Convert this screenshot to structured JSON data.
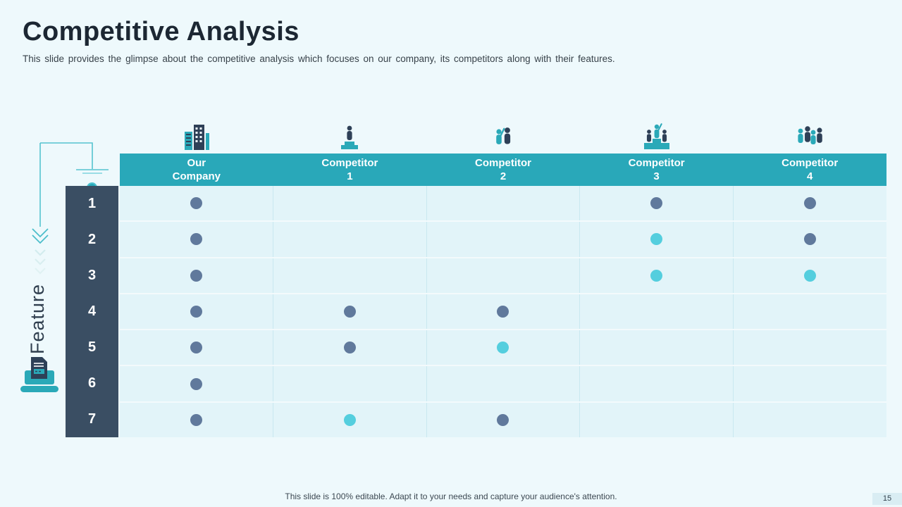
{
  "slide": {
    "title": "Competitive Analysis",
    "subtitle": "This slide provides the glimpse about the competitive analysis which focuses on our company, its competitors along with their features.",
    "footer": "This slide is 100% editable. Adapt it to your needs and capture your audience's attention.",
    "page_number": "15"
  },
  "colors": {
    "accent_teal": "#29a8b9",
    "navy": "#3a4e63",
    "dot_dark": "#60799c",
    "dot_cyan": "#54cede",
    "background": "#eef9fc",
    "cell_background": "#e2f4f9"
  },
  "table": {
    "row_axis_label": "Feature",
    "columns": [
      {
        "line1": "Our",
        "line2": "Company",
        "icon": "buildings-icon"
      },
      {
        "line1": "Competitor",
        "line2": "1",
        "icon": "person-podium-icon"
      },
      {
        "line1": "Competitor",
        "line2": "2",
        "icon": "two-people-icon"
      },
      {
        "line1": "Competitor",
        "line2": "3",
        "icon": "winners-podium-icon"
      },
      {
        "line1": "Competitor",
        "line2": "4",
        "icon": "people-group-icon"
      }
    ],
    "rows": [
      {
        "feature": "1",
        "dots": [
          "dark",
          null,
          null,
          "dark",
          "dark"
        ]
      },
      {
        "feature": "2",
        "dots": [
          "dark",
          null,
          null,
          "cyan",
          "dark"
        ]
      },
      {
        "feature": "3",
        "dots": [
          "dark",
          null,
          null,
          "cyan",
          "cyan"
        ]
      },
      {
        "feature": "4",
        "dots": [
          "dark",
          "dark",
          "dark",
          null,
          null
        ]
      },
      {
        "feature": "5",
        "dots": [
          "dark",
          "dark",
          "cyan",
          null,
          null
        ]
      },
      {
        "feature": "6",
        "dots": [
          "dark",
          null,
          null,
          null,
          null
        ]
      },
      {
        "feature": "7",
        "dots": [
          "dark",
          "cyan",
          "dark",
          null,
          null
        ]
      }
    ]
  }
}
